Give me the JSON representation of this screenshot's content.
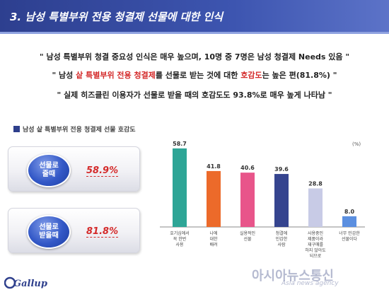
{
  "header": {
    "title": "3. 남성 특별부위 전용 청결제 선물에 대한 인식"
  },
  "bullets": [
    {
      "text": "\" 남성 특별부위 청결 중요성 인식은 매우 높으며, 10명 중 7명은 남성 청결제 Needs 있음 \""
    },
    {
      "before": "\" 남성 ",
      "accent": "샅 특별부위 전용 청결제",
      "middle": "를 선물로 받는 것에 대한 ",
      "accent2": "호감도",
      "after": "는 높은 편(81.8%) \""
    },
    {
      "text": "\" 실제 히즈클린 이용자가 선물로 받을 때의 호감도도 93.8%로 매우 높게 나타남 \""
    }
  ],
  "section": {
    "title": "남성 샅 특별부위 전용 청결제 선물 호감도"
  },
  "stats": [
    {
      "label": "선물로 줄때",
      "value": "58.9%"
    },
    {
      "label": "선물로 받을때",
      "value": "81.8%"
    }
  ],
  "chart_data": {
    "type": "bar",
    "unit_label": "(%)",
    "categories": [
      "호기심에서 꼭 한번 사용",
      "나에 대한 배려",
      "실용적인 선물",
      "청결에 민감한 사람",
      "사용중인 제품이라 재구매를 하지 않아도 되므로",
      "너무 민감한 선물이다"
    ],
    "category_lines": [
      [
        "호기심에서",
        "꼭 한번",
        "사용"
      ],
      [
        "나에",
        "대한",
        "배려"
      ],
      [
        "실용적인",
        "선물"
      ],
      [
        "청결에",
        "민감한",
        "사람"
      ],
      [
        "사용중인",
        "제품이라",
        "재구매를",
        "하지 않아도",
        "되므로"
      ],
      [
        "너무 민감한",
        "선물이다"
      ]
    ],
    "values": [
      58.7,
      41.8,
      40.6,
      39.6,
      28.8,
      8.0
    ],
    "value_labels": [
      "58.7",
      "41.8",
      "40.6",
      "39.6",
      "28.8",
      "8.0"
    ],
    "colors": [
      "#2ea596",
      "#ec6a2a",
      "#e8558a",
      "#35448f",
      "#c8cbe6",
      "#5b8fe0"
    ],
    "ylim": [
      0,
      65
    ]
  },
  "logo": {
    "text": "Gallup"
  },
  "watermark": {
    "text": "아시아뉴스통신",
    "sub": "Asia news agency"
  }
}
